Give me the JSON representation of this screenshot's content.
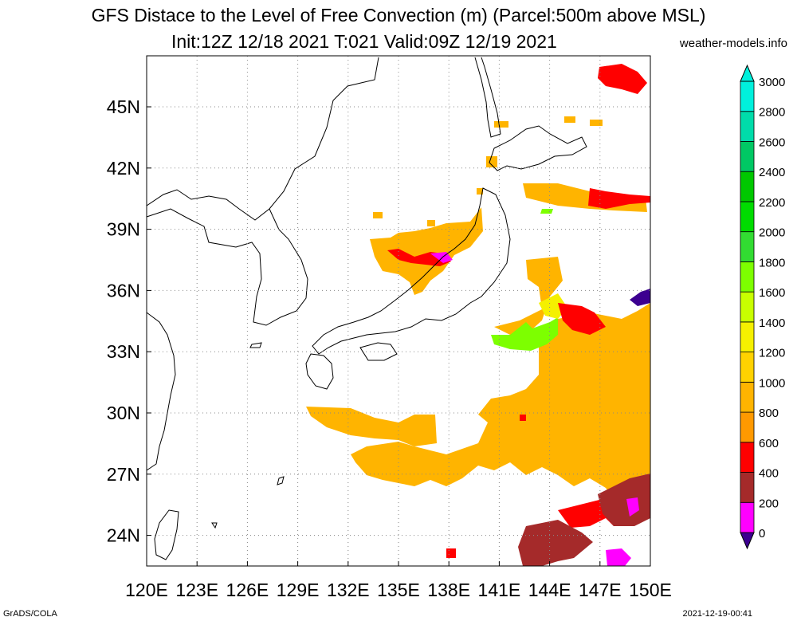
{
  "header": {
    "title": "GFS Distace to the Level of Free Convection (m) (Parcel:500m above MSL)",
    "subtitle": "Init:12Z 12/18 2021 T:021 Valid:09Z 12/19 2021",
    "site": "weather-models.info"
  },
  "footer": {
    "left": "GrADS/COLA",
    "right": "2021-12-19-00:41"
  },
  "map": {
    "lon_labels": [
      "120E",
      "123E",
      "126E",
      "129E",
      "132E",
      "135E",
      "138E",
      "141E",
      "144E",
      "147E",
      "150E"
    ],
    "lon_values": [
      120,
      123,
      126,
      129,
      132,
      135,
      138,
      141,
      144,
      147,
      150
    ],
    "lat_labels": [
      "24N",
      "27N",
      "30N",
      "33N",
      "36N",
      "39N",
      "42N",
      "45N"
    ],
    "lat_values": [
      24,
      27,
      30,
      33,
      36,
      39,
      42,
      45
    ],
    "lon_range": [
      120,
      150
    ],
    "lat_range": [
      22.5,
      47.5
    ],
    "grid": "dotted"
  },
  "colorbar": {
    "labels": [
      "0",
      "200",
      "400",
      "600",
      "800",
      "1000",
      "1200",
      "1400",
      "1600",
      "1800",
      "2000",
      "2200",
      "2400",
      "2600",
      "2800",
      "3000"
    ],
    "colors": [
      "#3c0090",
      "#ff00ff",
      "#a52a2a",
      "#ff0000",
      "#ff9900",
      "#ffb400",
      "#ffd200",
      "#f5f000",
      "#c8ff00",
      "#7dff00",
      "#32dc32",
      "#00dc00",
      "#00c800",
      "#00c864",
      "#00dcaa",
      "#00f0dc"
    ]
  },
  "colors": {
    "red": "#ff0000",
    "magenta": "#ff00ff",
    "brown": "#a52a2a",
    "orange": "#ffb400",
    "yellow": "#f5f000",
    "lime": "#7dff00",
    "purple": "#3c0090"
  }
}
